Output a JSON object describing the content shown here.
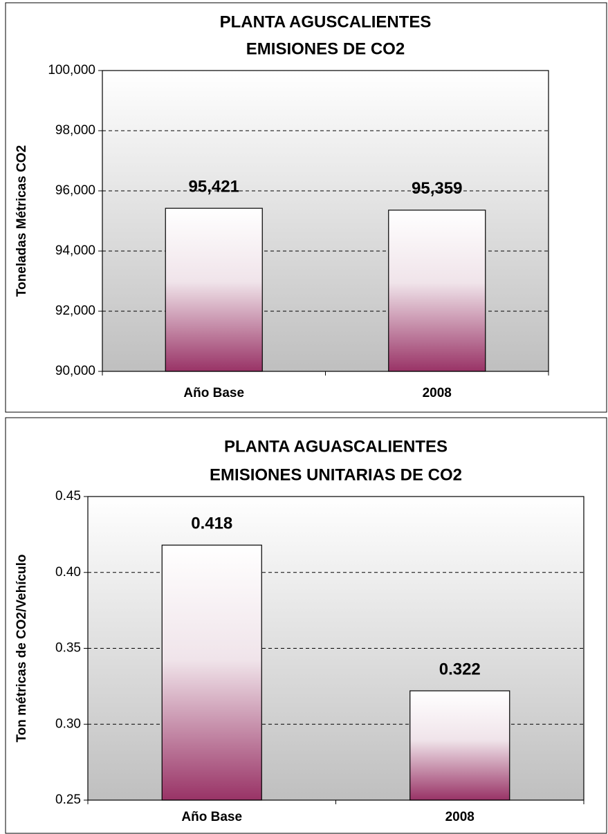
{
  "chart_data": [
    {
      "type": "bar",
      "title": [
        "PLANTA AGUSCALIENTES",
        "EMISIONES DE CO2"
      ],
      "y_label": "Toneladas Métricas CO2",
      "categories": [
        "Año Base",
        "2008"
      ],
      "values": [
        95421,
        95359
      ],
      "value_labels": [
        "95,421",
        "95,359"
      ],
      "color": "#993366",
      "ylim": [
        90000,
        100000
      ],
      "yticks": [
        {
          "value": 90000,
          "label": "90,000"
        },
        {
          "value": 92000,
          "label": "92,000"
        },
        {
          "value": 94000,
          "label": "94,000"
        },
        {
          "value": 96000,
          "label": "96,000"
        },
        {
          "value": 98000,
          "label": "98,000"
        },
        {
          "value": 100000,
          "label": "100,000"
        }
      ],
      "grid": true
    },
    {
      "type": "bar",
      "title": [
        "PLANTA AGUASCALIENTES",
        "EMISIONES UNITARIAS DE CO2"
      ],
      "y_label": "Ton métricas de CO2/Vehículo",
      "categories": [
        "Año Base",
        "2008"
      ],
      "values": [
        0.418,
        0.322
      ],
      "color": "#993366",
      "ylim": [
        0.25,
        0.45
      ],
      "yticks": [
        0.25,
        {
          "value": 0.3,
          "label": "0.30"
        },
        0.35,
        {
          "value": 0.4,
          "label": "0.40"
        },
        0.45
      ],
      "grid": true
    }
  ]
}
